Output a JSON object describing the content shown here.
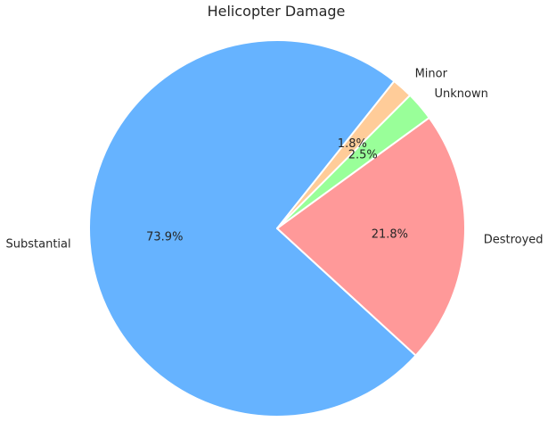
{
  "chart_data": {
    "type": "pie",
    "title": "Helicopter Damage",
    "start_angle_deg": 45,
    "direction": "counterclockwise",
    "slices": [
      {
        "label": "Minor",
        "value": 1.8,
        "pct_text": "1.8%",
        "color": "#ffcc99"
      },
      {
        "label": "Substantial",
        "value": 73.9,
        "pct_text": "73.9%",
        "color": "#66b3ff"
      },
      {
        "label": "Destroyed",
        "value": 21.8,
        "pct_text": "21.8%",
        "color": "#ff9999"
      },
      {
        "label": "Unknown",
        "value": 2.5,
        "pct_text": "2.5%",
        "color": "#99ff99"
      }
    ]
  }
}
